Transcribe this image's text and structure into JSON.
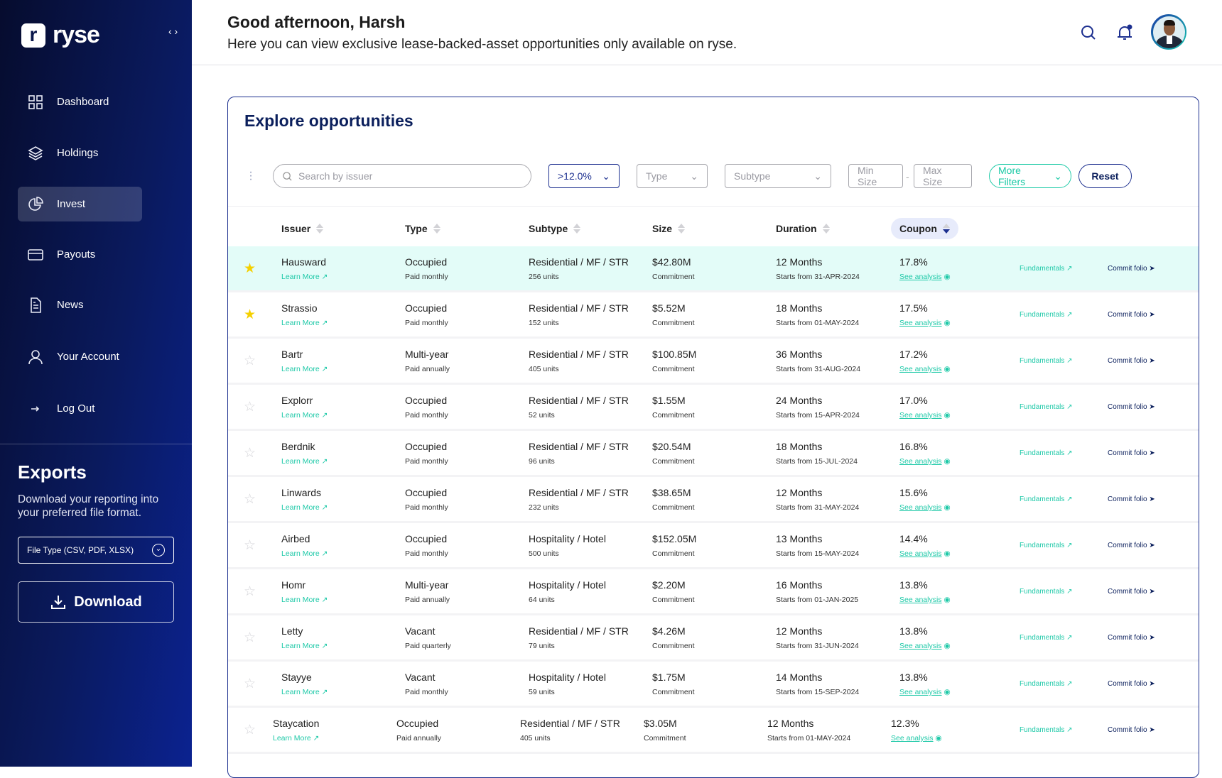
{
  "sidebar": {
    "logo_letter": "r",
    "logo_text": "ryse",
    "collapse": "‹ ›",
    "items": [
      {
        "label": "Dashboard"
      },
      {
        "label": "Holdings"
      },
      {
        "label": "Invest"
      },
      {
        "label": "Payouts"
      },
      {
        "label": "News"
      },
      {
        "label": "Your Account"
      },
      {
        "label": "Log Out"
      }
    ],
    "active": "Invest",
    "exports": {
      "title": "Exports",
      "description": "Download your reporting into your preferred file format.",
      "file_type_placeholder": "File Type (CSV, PDF, XLSX)",
      "download_label": "Download"
    }
  },
  "header": {
    "greeting": "Good afternoon, Harsh",
    "subtitle": "Here you can view exclusive lease-backed-asset opportunities only available on ryse."
  },
  "card": {
    "title": "Explore opportunities",
    "filters": {
      "search_placeholder": "Search by issuer",
      "coupon": ">12.0%",
      "type": "Type",
      "subtype": "Subtype",
      "min_size": "Min Size",
      "max_size": "Max Size",
      "more_filters": "More Filters",
      "reset": "Reset"
    },
    "columns": [
      "Issuer",
      "Type",
      "Subtype",
      "Size",
      "Duration",
      "Coupon"
    ],
    "sorted_column": "Coupon",
    "sort_direction": "descending",
    "row_links": {
      "learn_more": "Learn More",
      "see_analysis": "See analysis",
      "fundamentals": "Fundamentals",
      "commit": "Commit folio"
    },
    "rows": [
      {
        "starred": true,
        "issuer": "Hausward",
        "type": "Occupied",
        "payment": "Paid monthly",
        "subtype": "Residential / MF / STR",
        "units": "256 units",
        "size": "$42.80M",
        "size_note": "Commitment",
        "duration": "12 Months",
        "start": "Starts from 31-APR-2024",
        "coupon": "17.8%"
      },
      {
        "starred": true,
        "issuer": "Strassio",
        "type": "Occupied",
        "payment": "Paid monthly",
        "subtype": "Residential / MF / STR",
        "units": "152 units",
        "size": "$5.52M",
        "size_note": "Commitment",
        "duration": "18 Months",
        "start": "Starts from 01-MAY-2024",
        "coupon": "17.5%"
      },
      {
        "starred": false,
        "issuer": "Bartr",
        "type": "Multi-year",
        "payment": "Paid annually",
        "subtype": "Residential / MF / STR",
        "units": "405 units",
        "size": "$100.85M",
        "size_note": "Commitment",
        "duration": "36 Months",
        "start": "Starts from 31-AUG-2024",
        "coupon": "17.2%"
      },
      {
        "starred": false,
        "issuer": "Explorr",
        "type": "Occupied",
        "payment": "Paid monthly",
        "subtype": "Residential / MF / STR",
        "units": "52 units",
        "size": "$1.55M",
        "size_note": "Commitment",
        "duration": "24 Months",
        "start": "Starts from 15-APR-2024",
        "coupon": "17.0%"
      },
      {
        "starred": false,
        "issuer": "Berdnik",
        "type": "Occupied",
        "payment": "Paid monthly",
        "subtype": "Residential / MF / STR",
        "units": "96 units",
        "size": "$20.54M",
        "size_note": "Commitment",
        "duration": "18 Months",
        "start": "Starts from 15-JUL-2024",
        "coupon": "16.8%"
      },
      {
        "starred": false,
        "issuer": "Linwards",
        "type": "Occupied",
        "payment": "Paid monthly",
        "subtype": "Residential / MF / STR",
        "units": "232 units",
        "size": "$38.65M",
        "size_note": "Commitment",
        "duration": "12 Months",
        "start": "Starts from 31-MAY-2024",
        "coupon": "15.6%"
      },
      {
        "starred": false,
        "issuer": "Airbed",
        "type": "Occupied",
        "payment": "Paid monthly",
        "subtype": "Hospitality / Hotel",
        "units": "500 units",
        "size": "$152.05M",
        "size_note": "Commitment",
        "duration": "13 Months",
        "start": "Starts from 15-MAY-2024",
        "coupon": "14.4%"
      },
      {
        "starred": false,
        "issuer": "Homr",
        "type": "Multi-year",
        "payment": "Paid annually",
        "subtype": "Hospitality / Hotel",
        "units": "64 units",
        "size": "$2.20M",
        "size_note": "Commitment",
        "duration": "16 Months",
        "start": "Starts from 01-JAN-2025",
        "coupon": "13.8%"
      },
      {
        "starred": false,
        "issuer": "Letty",
        "type": "Vacant",
        "payment": "Paid quarterly",
        "subtype": "Residential / MF / STR",
        "units": "79 units",
        "size": "$4.26M",
        "size_note": "Commitment",
        "duration": "12 Months",
        "start": "Starts from 31-JUN-2024",
        "coupon": "13.8%"
      },
      {
        "starred": false,
        "issuer": "Stayye",
        "type": "Vacant",
        "payment": "Paid monthly",
        "subtype": "Hospitality / Hotel",
        "units": "59 units",
        "size": "$1.75M",
        "size_note": "Commitment",
        "duration": "14 Months",
        "start": "Starts from 15-SEP-2024",
        "coupon": "13.8%"
      },
      {
        "starred": false,
        "issuer": "Staycation",
        "type": "Occupied",
        "payment": "Paid annually",
        "subtype": "Residential / MF / STR",
        "units": "405 units",
        "size": "$3.05M",
        "size_note": "Commitment",
        "duration": "12 Months",
        "start": "Starts from 01-MAY-2024",
        "coupon": "12.3%"
      }
    ]
  },
  "colors": {
    "sidebar": "#0a1a5e",
    "accent": "#1c2f8f",
    "teal": "#1fc9a8",
    "highlight_row": "#e3fcf8",
    "star": "#f5d000"
  }
}
